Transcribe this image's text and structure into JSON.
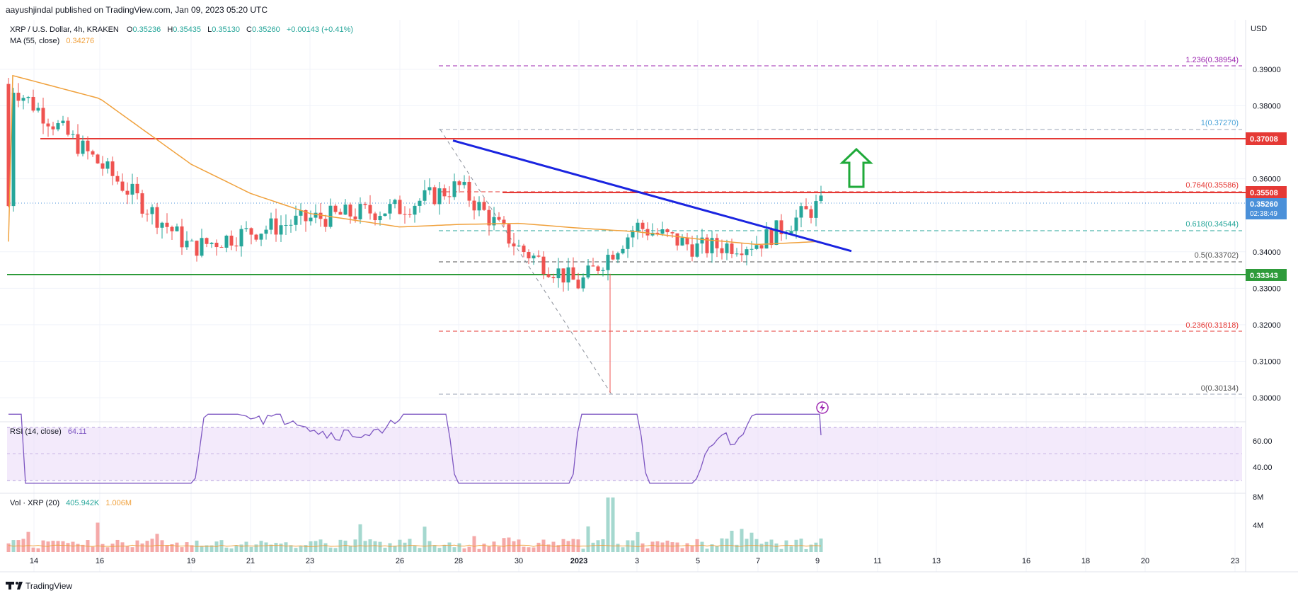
{
  "header": {
    "publisher_line": "aayushjindal published on TradingView.com, Jan 09, 2023 05:20 UTC"
  },
  "legend": {
    "symbol_line": "XRP / U.S. Dollar, 4h, KRAKEN",
    "ohlc": [
      {
        "label": "O",
        "value": "0.35236"
      },
      {
        "label": "H",
        "value": "0.35435"
      },
      {
        "label": "L",
        "value": "0.35130"
      },
      {
        "label": "C",
        "value": "0.35260"
      }
    ],
    "change": "+0.00143 (+0.41%)",
    "ma_label": "MA (55, close)",
    "ma_value": "0.34276"
  },
  "axis": {
    "currency": "USD",
    "date_labels": [
      "14",
      "16",
      "19",
      "21",
      "23",
      "26",
      "28",
      "30",
      "2023",
      "3",
      "5",
      "7",
      "9",
      "11",
      "13",
      "16",
      "18",
      "20",
      "23"
    ]
  },
  "price_badges": {
    "resistance": "0.37008",
    "fib_line": "0.35508",
    "last_price": "0.35260",
    "countdown": "02:38:49",
    "support": "0.33343"
  },
  "fib_labels": [
    "1.236(0.38954)",
    "1(0.37270)",
    "0.764(0.35586)",
    "0.618(0.34544)",
    "0.5(0.33702)",
    "0.236(0.31818)",
    "0(0.30134)"
  ],
  "rsi": {
    "label": "RSI (14, close)",
    "value": "64.11",
    "ticks": [
      "60.00",
      "40.00"
    ]
  },
  "volume": {
    "label": "Vol · XRP (20)",
    "value1": "405.942K",
    "value2": "1.006M",
    "ticks": [
      "8M",
      "4M"
    ]
  },
  "footer": {
    "brand": "TradingView"
  },
  "colors": {
    "up": "#26a69a",
    "down": "#ef5350",
    "ma": "#f0a13c",
    "trendline": "#1a24e0",
    "resistance": "#e53935",
    "support": "#2e9b3a",
    "arrow": "#1faa3a",
    "rsi_line": "#7e57c2"
  },
  "chart_data": {
    "type": "candlestick",
    "x": [
      "Dec 14",
      "Dec 16",
      "Dec 19",
      "Dec 21",
      "Dec 23",
      "Dec 26",
      "Dec 28",
      "Dec 30",
      "Jan 2",
      "Jan 3",
      "Jan 5",
      "Jan 7",
      "Jan 9"
    ],
    "close": [
      0.386,
      0.364,
      0.341,
      0.3455,
      0.349,
      0.352,
      0.358,
      0.341,
      0.331,
      0.347,
      0.341,
      0.3425,
      0.3526
    ],
    "ma55": [
      0.3885,
      0.382,
      0.364,
      0.356,
      0.3505,
      0.3468,
      0.3475,
      0.3478,
      0.3465,
      0.3455,
      0.3435,
      0.342,
      0.3428
    ],
    "levels": {
      "resistance": 0.37008,
      "fib_line": 0.35508,
      "last_price": 0.3526,
      "support": 0.33343
    },
    "fibonacci": [
      {
        "ratio": 1.236,
        "price": 0.38954
      },
      {
        "ratio": 1,
        "price": 0.3727
      },
      {
        "ratio": 0.764,
        "price": 0.35586
      },
      {
        "ratio": 0.618,
        "price": 0.34544
      },
      {
        "ratio": 0.5,
        "price": 0.33702
      },
      {
        "ratio": 0.236,
        "price": 0.31818
      },
      {
        "ratio": 0,
        "price": 0.30134
      }
    ],
    "trendline": [
      {
        "x": "Dec 27",
        "price": 0.3705
      },
      {
        "x": "Jan 10",
        "price": 0.3402
      }
    ],
    "price_ticks": [
      0.39,
      0.38,
      0.36,
      0.34,
      0.33,
      0.32,
      0.31,
      0.3
    ],
    "ylim": [
      0.297,
      0.402
    ],
    "rsi_range": [
      30,
      70
    ],
    "volume_ticks": [
      8000000,
      4000000
    ]
  }
}
